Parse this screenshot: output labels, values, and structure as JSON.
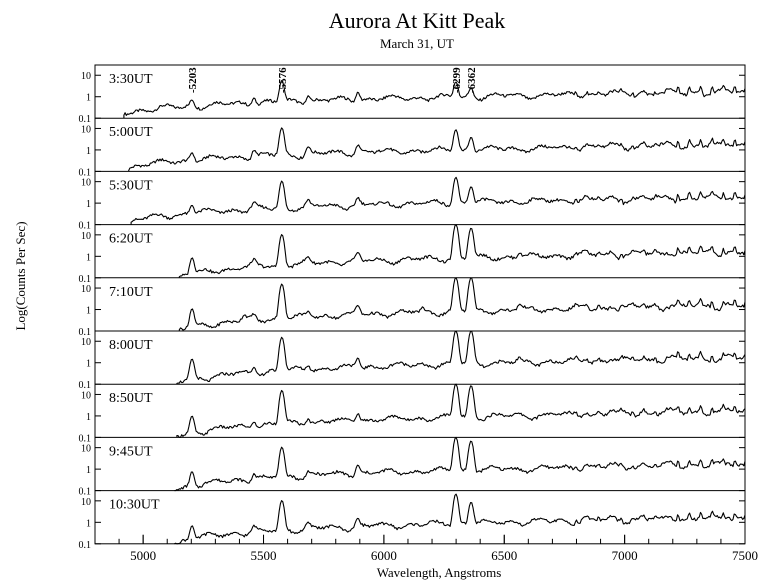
{
  "chart_data": {
    "type": "line",
    "title": "Aurora At Kitt Peak",
    "subtitle": "March 31, UT",
    "xlabel": "Wavelength, Angstroms",
    "ylabel": "Log(Counts Per Sec)",
    "xlim": [
      4800,
      7500
    ],
    "ylim": [
      0.1,
      30
    ],
    "y_scale": "log",
    "x_ticks": [
      5000,
      5500,
      6000,
      6500,
      7000,
      7500
    ],
    "y_ticks": [
      {
        "value": 10,
        "label": "10"
      },
      {
        "value": 1,
        "label": "1"
      },
      {
        "value": 0.1,
        "label": "0.1"
      }
    ],
    "grid": false,
    "annotations": [
      {
        "x": 5203,
        "text": "-5203"
      },
      {
        "x": 5576,
        "text": "-5576"
      },
      {
        "x": 6299,
        "text": "-6299"
      },
      {
        "x": 6362,
        "text": "-6362"
      }
    ],
    "series": [
      {
        "name": "3:30UT",
        "start": 4920,
        "floor": 0.18,
        "slope": 1.6,
        "lines": [
          [
            5203,
            0.35
          ],
          [
            5460,
            0.5
          ],
          [
            5576,
            5.0
          ],
          [
            5685,
            0.6
          ],
          [
            5892,
            1.0
          ],
          [
            6299,
            4.0
          ],
          [
            6362,
            1.6
          ]
        ],
        "bands_start": 6790,
        "bands_amp": 0.8,
        "bands_last": 1.5
      },
      {
        "name": "5:00UT",
        "start": 4940,
        "floor": 0.15,
        "slope": 1.7,
        "lines": [
          [
            5203,
            0.45
          ],
          [
            5460,
            0.5
          ],
          [
            5576,
            10.0
          ],
          [
            5685,
            0.8
          ],
          [
            5892,
            1.0
          ],
          [
            6299,
            8.0
          ],
          [
            6362,
            3.0
          ]
        ],
        "bands_start": 6790,
        "bands_amp": 0.8,
        "bands_last": 1.4
      },
      {
        "name": "5:30UT",
        "start": 4950,
        "floor": 0.14,
        "slope": 1.8,
        "lines": [
          [
            5203,
            0.5
          ],
          [
            5460,
            0.5
          ],
          [
            5576,
            10.0
          ],
          [
            5685,
            0.6
          ],
          [
            5892,
            0.9
          ],
          [
            6299,
            15.0
          ],
          [
            6362,
            5.0
          ]
        ],
        "bands_start": 6790,
        "bands_amp": 0.8,
        "bands_last": 1.4
      },
      {
        "name": "6:20UT",
        "start": 5150,
        "floor": 0.11,
        "slope": 1.5,
        "lines": [
          [
            5203,
            0.7
          ],
          [
            5460,
            0.3
          ],
          [
            5576,
            10.0
          ],
          [
            5685,
            0.35
          ],
          [
            5892,
            0.7
          ],
          [
            6299,
            30.0
          ],
          [
            6362,
            20.0
          ],
          [
            6563,
            0.6
          ]
        ],
        "bands_start": 6790,
        "bands_amp": 0.7,
        "bands_last": 1.2
      },
      {
        "name": "7:10UT",
        "start": 5150,
        "floor": 0.11,
        "slope": 1.5,
        "lines": [
          [
            5203,
            0.9
          ],
          [
            5420,
            0.2
          ],
          [
            5460,
            0.25
          ],
          [
            5576,
            15.0
          ],
          [
            5685,
            0.35
          ],
          [
            5892,
            0.9
          ],
          [
            6160,
            0.35
          ],
          [
            6299,
            30.0
          ],
          [
            6362,
            30.0
          ],
          [
            6563,
            0.7
          ]
        ],
        "bands_start": 6790,
        "bands_amp": 0.7,
        "bands_last": 1.2
      },
      {
        "name": "8:00UT",
        "start": 5140,
        "floor": 0.11,
        "slope": 1.6,
        "lines": [
          [
            5203,
            1.3
          ],
          [
            5460,
            0.3
          ],
          [
            5576,
            15.0
          ],
          [
            5685,
            0.35
          ],
          [
            5892,
            1.0
          ],
          [
            6299,
            30.0
          ],
          [
            6362,
            30.0
          ],
          [
            6563,
            0.5
          ]
        ],
        "bands_start": 6790,
        "bands_amp": 0.7,
        "bands_last": 1.2
      },
      {
        "name": "8:50UT",
        "start": 5140,
        "floor": 0.11,
        "slope": 1.6,
        "lines": [
          [
            5203,
            0.8
          ],
          [
            5460,
            0.3
          ],
          [
            5576,
            15.0
          ],
          [
            5685,
            0.35
          ],
          [
            5892,
            0.8
          ],
          [
            6299,
            30.0
          ],
          [
            6362,
            25.0
          ]
        ],
        "bands_start": 6790,
        "bands_amp": 0.7,
        "bands_last": 1.2
      },
      {
        "name": "9:45UT",
        "start": 5130,
        "floor": 0.11,
        "slope": 1.6,
        "lines": [
          [
            5203,
            0.6
          ],
          [
            5460,
            0.3
          ],
          [
            5576,
            10.0
          ],
          [
            5685,
            0.35
          ],
          [
            5892,
            1.0
          ],
          [
            6299,
            30.0
          ],
          [
            6362,
            20.0
          ]
        ],
        "bands_start": 6790,
        "bands_amp": 0.7,
        "bands_last": 1.2
      },
      {
        "name": "10:30UT",
        "start": 5130,
        "floor": 0.11,
        "slope": 1.6,
        "lines": [
          [
            5203,
            0.55
          ],
          [
            5460,
            0.3
          ],
          [
            5576,
            10.0
          ],
          [
            5685,
            0.35
          ],
          [
            5892,
            0.9
          ],
          [
            6299,
            20.0
          ],
          [
            6362,
            8.0
          ]
        ],
        "bands_start": 6790,
        "bands_amp": 0.7,
        "bands_last": 1.2
      }
    ]
  }
}
